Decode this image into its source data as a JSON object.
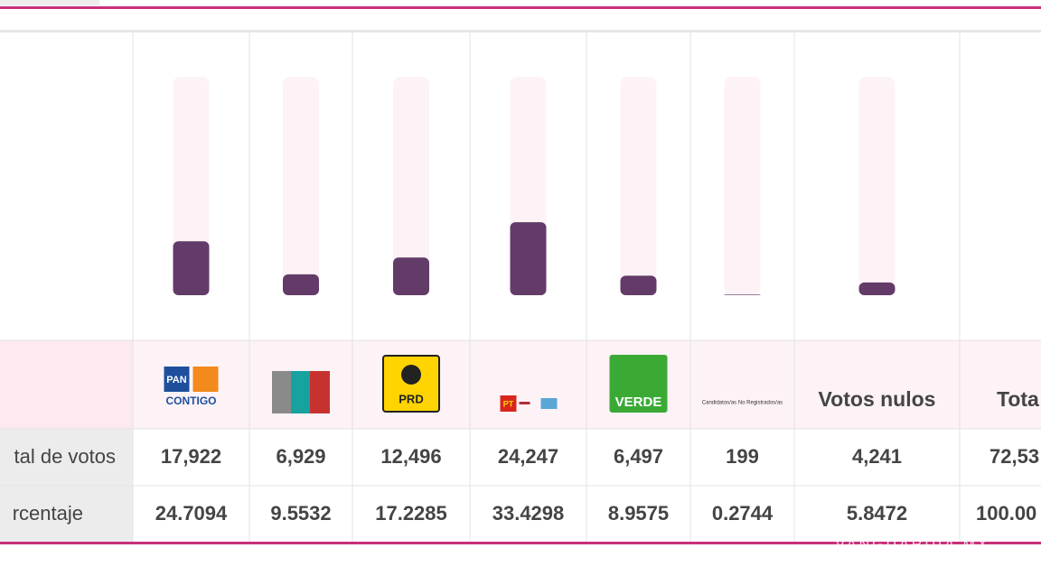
{
  "rows": {
    "votes_label": "tal de votos",
    "percentage_label": "rcentaje"
  },
  "columns": [
    {
      "logo_texts": [
        "PAN",
        "CONTIGO"
      ],
      "votes": "17,922",
      "percentage": 24.7094
    },
    {
      "logo_texts": [],
      "votes": "6,929",
      "percentage": 9.5532
    },
    {
      "logo_texts": [
        "PRD"
      ],
      "votes": "12,496",
      "percentage": 17.2285
    },
    {
      "logo_texts": [
        "PT"
      ],
      "votes": "24,247",
      "percentage": 33.4298
    },
    {
      "logo_texts": [
        "VERDE"
      ],
      "votes": "6,497",
      "percentage": 8.9575
    },
    {
      "logo_texts": [
        "Candidatos/as No Registrados/as"
      ],
      "votes": "199",
      "percentage": 0.2744
    },
    {
      "label": "Votos nulos",
      "votes": "4,241",
      "percentage": 5.8472
    },
    {
      "label": "Tota",
      "votes": "72,53",
      "percentage": "100.00"
    }
  ],
  "watermark": "VANGUARDIA MX"
}
